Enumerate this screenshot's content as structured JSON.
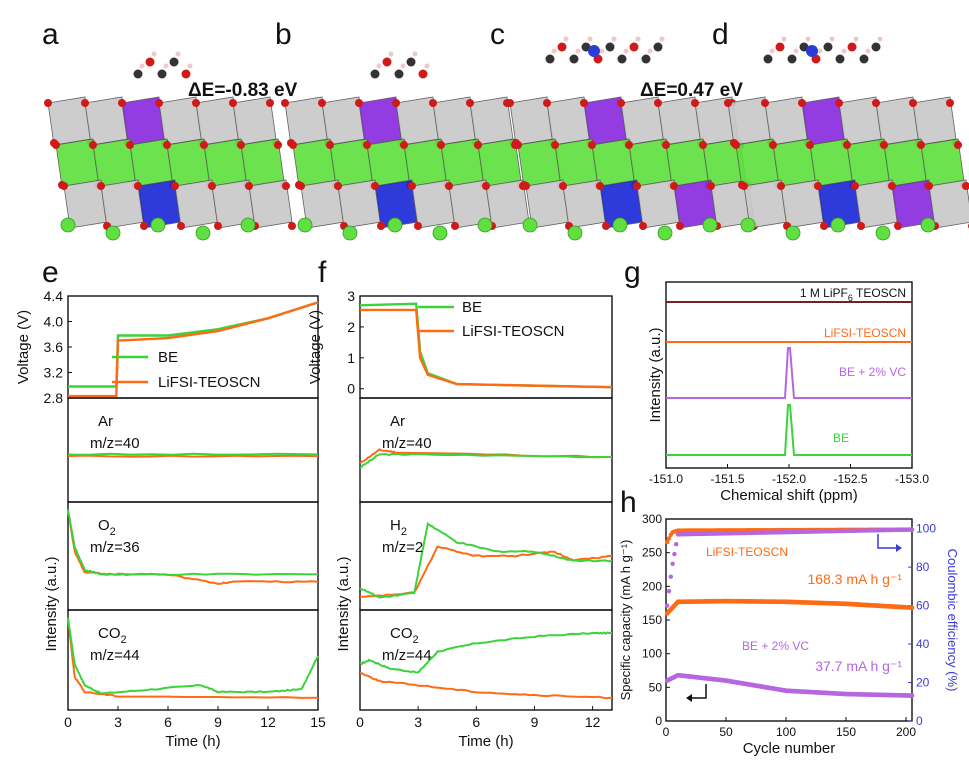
{
  "panel_letters": {
    "a": "a",
    "b": "b",
    "c": "c",
    "d": "d",
    "e": "e",
    "f": "f",
    "g": "g",
    "h": "h"
  },
  "annotations": {
    "dE_ab": "ΔE=-0.83 eV",
    "dE_cd": "ΔE=0.47 eV"
  },
  "colors": {
    "BE": "#3cd23c",
    "LiFSI": "#ff6a14",
    "vc": "#b566e0",
    "lipf6": "#7a1f1f",
    "right_axis": "#3a3ad8",
    "oxygen": "#d01a1a",
    "mn_purple": "#8a2ce0",
    "co_blue": "#1e2ad8",
    "li_green": "#5fe040",
    "grey": "#c9c9c9"
  },
  "legend": {
    "BE": "BE",
    "LiFSI": "LiFSI-TEOSCN"
  },
  "chart_data": [
    {
      "panel": "e",
      "type": "line",
      "xlabel": "Time (h)",
      "xticks": [
        0,
        3,
        6,
        9,
        12,
        15
      ],
      "xlim": [
        0,
        15
      ],
      "ylabel_voltage": "Voltage (V)",
      "yticks_voltage": [
        "2.8",
        "3.2",
        "3.6",
        "4.0",
        "4.4"
      ],
      "ylim_voltage": [
        2.8,
        4.4
      ],
      "ylabel_intensity": "Intensity (a.u.)",
      "voltage": {
        "BE": [
          [
            0,
            2.98
          ],
          [
            2.9,
            2.98
          ],
          [
            3.0,
            3.78
          ],
          [
            6,
            3.78
          ],
          [
            9,
            3.88
          ],
          [
            12,
            4.05
          ],
          [
            15,
            4.3
          ]
        ],
        "LiFSI-TEOSCN": [
          [
            0,
            2.83
          ],
          [
            2.9,
            2.83
          ],
          [
            3.0,
            3.7
          ],
          [
            6,
            3.74
          ],
          [
            9,
            3.85
          ],
          [
            12,
            4.05
          ],
          [
            15,
            4.3
          ]
        ]
      },
      "gases": [
        {
          "label": "Ar",
          "mz": "m/z=40",
          "BE": [
            [
              0,
              0.45
            ],
            [
              15,
              0.45
            ]
          ],
          "LiFSI-TEOSCN": [
            [
              0,
              0.43
            ],
            [
              15,
              0.43
            ]
          ]
        },
        {
          "label": "O2",
          "mz": "m/z=36",
          "BE": [
            [
              0,
              1
            ],
            [
              0.4,
              0.6
            ],
            [
              1,
              0.35
            ],
            [
              2,
              0.3
            ],
            [
              6,
              0.3
            ],
            [
              15,
              0.3
            ]
          ],
          "LiFSI-TEOSCN": [
            [
              0,
              1
            ],
            [
              0.4,
              0.55
            ],
            [
              1,
              0.32
            ],
            [
              3,
              0.3
            ],
            [
              6,
              0.3
            ],
            [
              9,
              0.2
            ],
            [
              10,
              0.22
            ],
            [
              15,
              0.22
            ]
          ]
        },
        {
          "label": "CO2",
          "mz": "m/z=44",
          "BE": [
            [
              0,
              1
            ],
            [
              0.4,
              0.45
            ],
            [
              1,
              0.2
            ],
            [
              2,
              0.1
            ],
            [
              5,
              0.15
            ],
            [
              8,
              0.2
            ],
            [
              9,
              0.12
            ],
            [
              12,
              0.12
            ],
            [
              14,
              0.15
            ],
            [
              15,
              0.55
            ]
          ],
          "LiFSI-TEOSCN": [
            [
              0,
              1
            ],
            [
              0.4,
              0.3
            ],
            [
              1,
              0.12
            ],
            [
              3,
              0.07
            ],
            [
              15,
              0.05
            ]
          ]
        }
      ]
    },
    {
      "panel": "f",
      "type": "line",
      "xlabel": "Time (h)",
      "xticks": [
        0,
        3,
        6,
        9,
        12
      ],
      "xlim": [
        0,
        13
      ],
      "ylabel_voltage": "Voltage (V)",
      "yticks_voltage": [
        "0",
        "1",
        "2",
        "3"
      ],
      "ylim_voltage": [
        -0.3,
        3
      ],
      "ylabel_intensity": "Intensity (a.u.)",
      "voltage": {
        "BE": [
          [
            0,
            2.7
          ],
          [
            2.9,
            2.75
          ],
          [
            3.1,
            1.2
          ],
          [
            3.5,
            0.5
          ],
          [
            5,
            0.15
          ],
          [
            13,
            0.05
          ]
        ],
        "LiFSI-TEOSCN": [
          [
            0,
            2.55
          ],
          [
            2.9,
            2.55
          ],
          [
            3.1,
            1.0
          ],
          [
            3.5,
            0.45
          ],
          [
            5,
            0.15
          ],
          [
            13,
            0.05
          ]
        ]
      },
      "gases": [
        {
          "label": "Ar",
          "mz": "m/z=40",
          "BE": [
            [
              0,
              0.3
            ],
            [
              1,
              0.45
            ],
            [
              3,
              0.45
            ],
            [
              13,
              0.42
            ]
          ],
          "LiFSI-TEOSCN": [
            [
              0,
              0.35
            ],
            [
              1,
              0.5
            ],
            [
              2,
              0.47
            ],
            [
              13,
              0.42
            ]
          ]
        },
        {
          "label": "H2",
          "mz": "m/z=2",
          "BE": [
            [
              0,
              0.15
            ],
            [
              1,
              0.05
            ],
            [
              2.8,
              0.1
            ],
            [
              3.5,
              0.85
            ],
            [
              5,
              0.65
            ],
            [
              7,
              0.55
            ],
            [
              9,
              0.55
            ],
            [
              11,
              0.45
            ],
            [
              13,
              0.45
            ]
          ],
          "LiFSI-TEOSCN": [
            [
              0,
              0.05
            ],
            [
              2.8,
              0.1
            ],
            [
              4,
              0.6
            ],
            [
              6,
              0.5
            ],
            [
              8,
              0.5
            ],
            [
              10,
              0.55
            ],
            [
              11,
              0.45
            ],
            [
              13,
              0.5
            ]
          ]
        },
        {
          "label": "CO2",
          "mz": "m/z=44",
          "BE": [
            [
              0,
              0.45
            ],
            [
              0.5,
              0.5
            ],
            [
              1.5,
              0.4
            ],
            [
              3,
              0.35
            ],
            [
              4,
              0.6
            ],
            [
              6,
              0.7
            ],
            [
              9,
              0.78
            ],
            [
              12,
              0.82
            ],
            [
              13,
              0.82
            ]
          ],
          "LiFSI-TEOSCN": [
            [
              0,
              0.35
            ],
            [
              1,
              0.25
            ],
            [
              3,
              0.2
            ],
            [
              6,
              0.12
            ],
            [
              9,
              0.08
            ],
            [
              13,
              0.05
            ]
          ]
        }
      ]
    },
    {
      "panel": "g",
      "type": "line",
      "xlabel": "Chemical shift (ppm)",
      "ylabel": "Intensity (a.u.)",
      "xticks": [
        "-151.0",
        "-151.5",
        "-152.0",
        "-152.5",
        "-153.0"
      ],
      "xlim": [
        -151.0,
        -153.0
      ],
      "series": [
        {
          "name": "1 M LiPF6 TEOSCN",
          "peak": null
        },
        {
          "name": "LiFSI-TEOSCN",
          "peak": null
        },
        {
          "name": "BE + 2% VC",
          "peak": -152.0
        },
        {
          "name": "BE",
          "peak": -152.0
        }
      ]
    },
    {
      "panel": "h",
      "type": "scatter",
      "xlabel": "Cycle number",
      "ylabel_left": "Specific capacity (mA h g⁻¹)",
      "ylabel_right": "Coulombic efficiency (%)",
      "xticks": [
        0,
        50,
        100,
        150,
        200
      ],
      "xlim": [
        0,
        205
      ],
      "yticks_left": [
        0,
        50,
        100,
        150,
        200,
        250,
        300
      ],
      "ylim_left": [
        0,
        300
      ],
      "yticks_right": [
        0,
        20,
        40,
        60,
        80,
        100
      ],
      "ylim_right": [
        0,
        105
      ],
      "series": [
        {
          "name": "LiFSI-TEOSCN",
          "capacity": [
            [
              1,
              160
            ],
            [
              10,
              177
            ],
            [
              50,
              178
            ],
            [
              100,
              177
            ],
            [
              150,
              174
            ],
            [
              205,
              168.3
            ]
          ],
          "ce": [
            [
              1,
              93
            ],
            [
              5,
              98
            ],
            [
              10,
              99
            ],
            [
              205,
              99.5
            ]
          ]
        },
        {
          "name": "BE + 2% VC",
          "capacity": [
            [
              1,
              60
            ],
            [
              10,
              68
            ],
            [
              50,
              60
            ],
            [
              100,
              45
            ],
            [
              150,
              40
            ],
            [
              205,
              37.7
            ]
          ],
          "ce": [
            [
              1,
              60
            ],
            [
              5,
              80
            ],
            [
              10,
              97
            ],
            [
              205,
              99.5
            ]
          ]
        }
      ],
      "labels": {
        "LiFSI": "LiFSI-TEOSCN",
        "vc": "BE + 2% VC",
        "cap_lifsi": "168.3 mA h g⁻¹",
        "cap_vc": "37.7 mA h g⁻¹"
      }
    }
  ]
}
